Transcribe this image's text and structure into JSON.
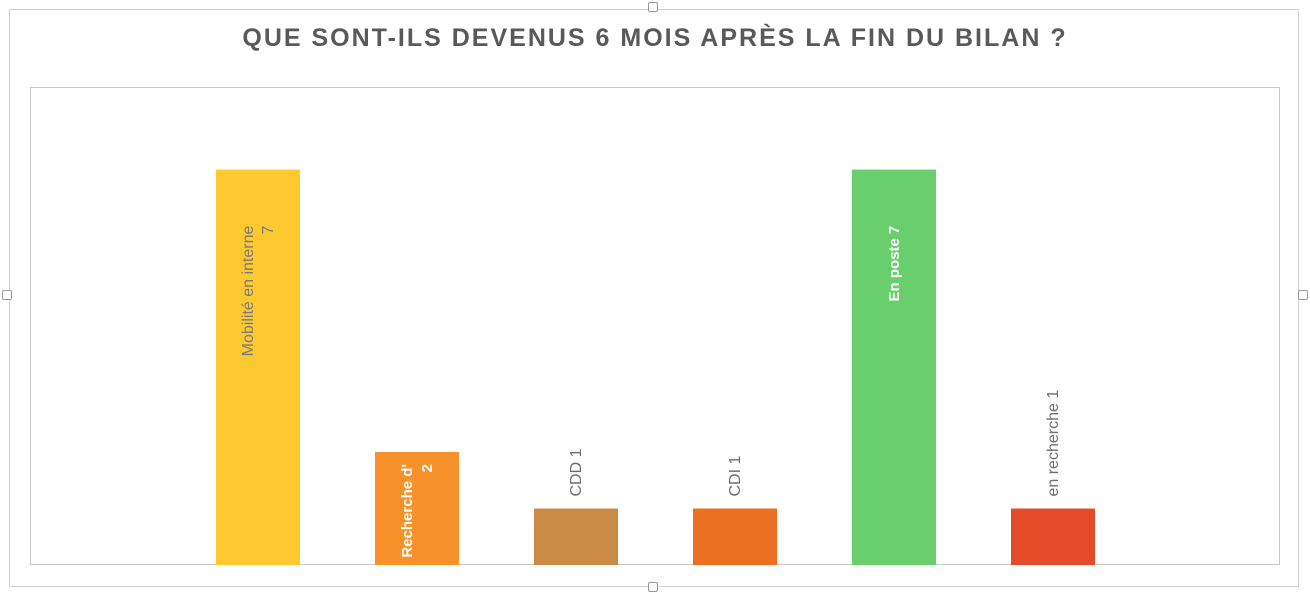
{
  "chart_data": {
    "type": "bar",
    "title": "QUE SONT-ILS DEVENUS 6 MOIS APRÈS LA FIN DU BILAN ?",
    "categories": [
      "Mobilité en interne",
      "Recherche d'emploi",
      "CDD",
      "CDI",
      "En poste",
      "en recherche"
    ],
    "values": [
      7,
      2,
      1,
      1,
      7,
      1
    ],
    "data_labels": [
      [
        "Mobilité en interne",
        "7"
      ],
      [
        "Recherche d'",
        "2"
      ],
      [
        "CDD  1"
      ],
      [
        "CDI 1"
      ],
      [
        "En poste 7"
      ],
      [
        "en recherche 1"
      ]
    ],
    "colors": [
      "#FEC82F",
      "#F7922B",
      "#CC8B45",
      "#EC7022",
      "#69CF6D",
      "#E44C27"
    ],
    "label_colors": [
      "#7a7a7a",
      "#ffffff",
      "#6e6e6e",
      "#6e6e6e",
      "#ffffff",
      "#6e6e6e"
    ],
    "label_positions": [
      "inside",
      "inside",
      "above",
      "above",
      "inside",
      "above"
    ],
    "ylim": [
      0,
      7.4
    ],
    "grid": false,
    "legend": "none",
    "xlabel": "",
    "ylabel": ""
  }
}
